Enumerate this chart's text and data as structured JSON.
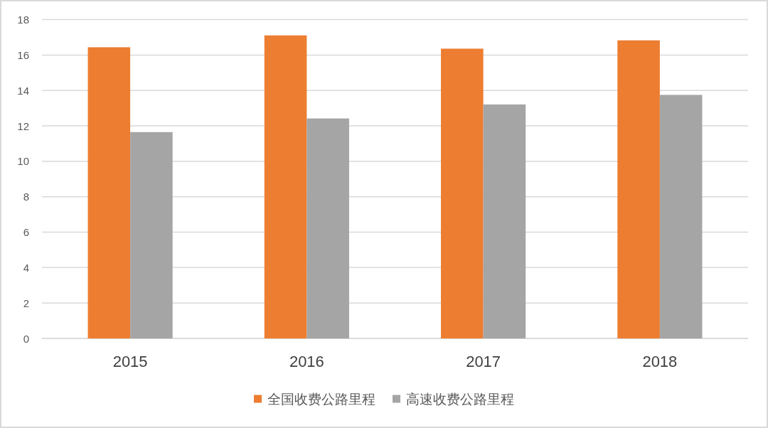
{
  "chart_data": {
    "type": "bar",
    "categories": [
      "2015",
      "2016",
      "2017",
      "2018"
    ],
    "series": [
      {
        "name": "全国收费公路里程",
        "color": "#ed7d31",
        "values": [
          16.44,
          17.11,
          16.36,
          16.83
        ]
      },
      {
        "name": "高速收费公路里程",
        "color": "#a5a5a5",
        "values": [
          11.65,
          12.42,
          13.21,
          13.75
        ]
      }
    ],
    "ylim": [
      0,
      18
    ],
    "yticks": [
      0,
      2,
      4,
      6,
      8,
      10,
      12,
      14,
      16,
      18
    ],
    "grid": "y",
    "legend": "bottom"
  }
}
